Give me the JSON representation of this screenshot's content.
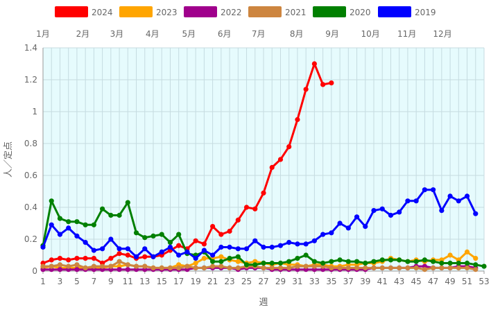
{
  "chart_data": {
    "type": "line",
    "xlabel": "週",
    "ylabel": "人／定点",
    "xlim": [
      1,
      53
    ],
    "ylim": [
      0,
      1.4
    ],
    "x_ticks": [
      1,
      3,
      5,
      7,
      9,
      11,
      13,
      15,
      17,
      19,
      21,
      23,
      25,
      27,
      29,
      31,
      33,
      35,
      37,
      39,
      41,
      43,
      45,
      47,
      49,
      51,
      53
    ],
    "y_ticks": [
      0,
      0.2,
      0.4,
      0.6,
      0.8,
      1.0,
      1.2,
      1.4
    ],
    "y_tick_labels": [
      "0",
      "0.2",
      "0.4",
      "0.6",
      "0.8",
      "1",
      "1.2",
      "1.4"
    ],
    "months": [
      {
        "label": "1月",
        "week": 1
      },
      {
        "label": "2月",
        "week": 5.7
      },
      {
        "label": "3月",
        "week": 9.7
      },
      {
        "label": "4月",
        "week": 13.9
      },
      {
        "label": "5月",
        "week": 18.2
      },
      {
        "label": "6月",
        "week": 22.4
      },
      {
        "label": "7月",
        "week": 26.4
      },
      {
        "label": "8月",
        "week": 30.9
      },
      {
        "label": "9月",
        "week": 35.1
      },
      {
        "label": "10月",
        "week": 39.6
      },
      {
        "label": "11月",
        "week": 43.9
      },
      {
        "label": "12月",
        "week": 48.1
      }
    ],
    "grid": true,
    "legend_position": "top",
    "background_color": "#e6fbfd",
    "series": [
      {
        "name": "2024",
        "color": "#ff0000",
        "x": [
          1,
          2,
          3,
          4,
          5,
          6,
          7,
          8,
          9,
          10,
          11,
          12,
          13,
          14,
          15,
          16,
          17,
          18,
          19,
          20,
          21,
          22,
          23,
          24,
          25,
          26,
          27,
          28,
          29,
          30,
          31,
          32,
          33,
          34,
          35
        ],
        "values": [
          0.05,
          0.07,
          0.08,
          0.07,
          0.08,
          0.08,
          0.08,
          0.05,
          0.08,
          0.11,
          0.1,
          0.08,
          0.09,
          0.09,
          0.1,
          0.13,
          0.16,
          0.14,
          0.19,
          0.17,
          0.28,
          0.23,
          0.25,
          0.32,
          0.4,
          0.39,
          0.49,
          0.65,
          0.7,
          0.78,
          0.95,
          1.14,
          1.3,
          1.17,
          1.18
        ]
      },
      {
        "name": "2023",
        "color": "#ffa500",
        "x": [
          1,
          2,
          3,
          4,
          5,
          6,
          7,
          8,
          9,
          10,
          11,
          12,
          13,
          14,
          15,
          16,
          17,
          18,
          19,
          20,
          21,
          22,
          23,
          24,
          25,
          26,
          27,
          28,
          29,
          30,
          31,
          32,
          33,
          34,
          35,
          36,
          37,
          38,
          39,
          40,
          41,
          42,
          43,
          44,
          45,
          46,
          47,
          48,
          49,
          50,
          51,
          52
        ],
        "values": [
          0.02,
          0.03,
          0.02,
          0.02,
          0.02,
          0.02,
          0.02,
          0.02,
          0.03,
          0.03,
          0.04,
          0.03,
          0.03,
          0.02,
          0.02,
          0.02,
          0.04,
          0.03,
          0.05,
          0.08,
          0.08,
          0.09,
          0.07,
          0.06,
          0.05,
          0.06,
          0.05,
          0.04,
          0.05,
          0.04,
          0.04,
          0.03,
          0.04,
          0.04,
          0.03,
          0.03,
          0.04,
          0.04,
          0.05,
          0.05,
          0.06,
          0.08,
          0.07,
          0.06,
          0.07,
          0.06,
          0.07,
          0.07,
          0.1,
          0.07,
          0.12,
          0.08
        ]
      },
      {
        "name": "2022",
        "color": "#a0008c",
        "x": [
          1,
          2,
          3,
          4,
          5,
          6,
          7,
          8,
          9,
          10,
          11,
          12,
          13,
          14,
          15,
          16,
          17,
          18,
          19,
          20,
          21,
          22,
          23,
          24,
          25,
          26,
          27,
          28,
          29,
          30,
          31,
          32,
          33,
          34,
          35,
          36,
          37,
          38,
          39,
          40,
          41,
          42,
          43,
          44,
          45,
          46,
          47,
          48,
          49,
          50,
          51,
          52
        ],
        "values": [
          0.01,
          0.01,
          0.01,
          0.01,
          0.01,
          0.01,
          0.01,
          0.01,
          0.01,
          0.01,
          0.01,
          0.01,
          0.01,
          0.01,
          0.01,
          0.01,
          0.01,
          0.01,
          0.02,
          0.02,
          0.02,
          0.02,
          0.02,
          0.01,
          0.02,
          0.02,
          0.02,
          0.01,
          0.01,
          0.01,
          0.01,
          0.01,
          0.01,
          0.01,
          0.01,
          0.01,
          0.01,
          0.01,
          0.01,
          0.02,
          0.02,
          0.02,
          0.02,
          0.02,
          0.03,
          0.03,
          0.02,
          0.02,
          0.02,
          0.03,
          0.03,
          0.02
        ]
      },
      {
        "name": "2021",
        "color": "#cd853f",
        "x": [
          1,
          2,
          3,
          4,
          5,
          6,
          7,
          8,
          9,
          10,
          11,
          12,
          13,
          14,
          15,
          16,
          17,
          18,
          19,
          20,
          21,
          22,
          23,
          24,
          25,
          26,
          27,
          28,
          29,
          30,
          31,
          32,
          33,
          34,
          35,
          36,
          37,
          38,
          39,
          40,
          41,
          42,
          43,
          44,
          45,
          46,
          47,
          48,
          49,
          50,
          51,
          52
        ],
        "values": [
          0.03,
          0.03,
          0.04,
          0.03,
          0.04,
          0.02,
          0.03,
          0.03,
          0.03,
          0.06,
          0.04,
          0.03,
          0.03,
          0.02,
          0.02,
          0.02,
          0.02,
          0.03,
          0.02,
          0.02,
          0.03,
          0.03,
          0.02,
          0.02,
          0.03,
          0.03,
          0.02,
          0.02,
          0.02,
          0.02,
          0.03,
          0.03,
          0.03,
          0.03,
          0.02,
          0.02,
          0.02,
          0.02,
          0.02,
          0.02,
          0.02,
          0.02,
          0.02,
          0.02,
          0.02,
          0.01,
          0.02,
          0.02,
          0.02,
          0.02,
          0.02,
          0.01
        ]
      },
      {
        "name": "2020",
        "color": "#008000",
        "x": [
          1,
          2,
          3,
          4,
          5,
          6,
          7,
          8,
          9,
          10,
          11,
          12,
          13,
          14,
          15,
          16,
          17,
          18,
          19,
          20,
          21,
          22,
          23,
          24,
          25,
          26,
          27,
          28,
          29,
          30,
          31,
          32,
          33,
          34,
          35,
          36,
          37,
          38,
          39,
          40,
          41,
          42,
          43,
          44,
          45,
          46,
          47,
          48,
          49,
          50,
          51,
          52,
          53
        ],
        "values": [
          0.16,
          0.44,
          0.33,
          0.31,
          0.31,
          0.29,
          0.29,
          0.39,
          0.35,
          0.35,
          0.43,
          0.24,
          0.21,
          0.22,
          0.23,
          0.18,
          0.23,
          0.11,
          0.1,
          0.12,
          0.06,
          0.06,
          0.08,
          0.09,
          0.04,
          0.04,
          0.05,
          0.05,
          0.05,
          0.06,
          0.08,
          0.1,
          0.06,
          0.05,
          0.06,
          0.07,
          0.06,
          0.06,
          0.05,
          0.06,
          0.07,
          0.07,
          0.07,
          0.06,
          0.06,
          0.07,
          0.06,
          0.05,
          0.05,
          0.05,
          0.05,
          0.04,
          0.03
        ]
      },
      {
        "name": "2019",
        "color": "#0000ff",
        "x": [
          1,
          2,
          3,
          4,
          5,
          6,
          7,
          8,
          9,
          10,
          11,
          12,
          13,
          14,
          15,
          16,
          17,
          18,
          19,
          20,
          21,
          22,
          23,
          24,
          25,
          26,
          27,
          28,
          29,
          30,
          31,
          32,
          33,
          34,
          35,
          36,
          37,
          38,
          39,
          40,
          41,
          42,
          43,
          44,
          45,
          46,
          47,
          48,
          49,
          50,
          51,
          52
        ],
        "values": [
          0.15,
          0.29,
          0.23,
          0.27,
          0.22,
          0.18,
          0.13,
          0.14,
          0.2,
          0.14,
          0.14,
          0.09,
          0.14,
          0.09,
          0.12,
          0.15,
          0.1,
          0.12,
          0.08,
          0.13,
          0.1,
          0.15,
          0.15,
          0.14,
          0.14,
          0.19,
          0.15,
          0.15,
          0.16,
          0.18,
          0.17,
          0.17,
          0.19,
          0.23,
          0.24,
          0.3,
          0.27,
          0.34,
          0.28,
          0.38,
          0.39,
          0.35,
          0.37,
          0.44,
          0.44,
          0.51,
          0.51,
          0.38,
          0.47,
          0.44,
          0.47,
          0.36
        ]
      }
    ]
  }
}
